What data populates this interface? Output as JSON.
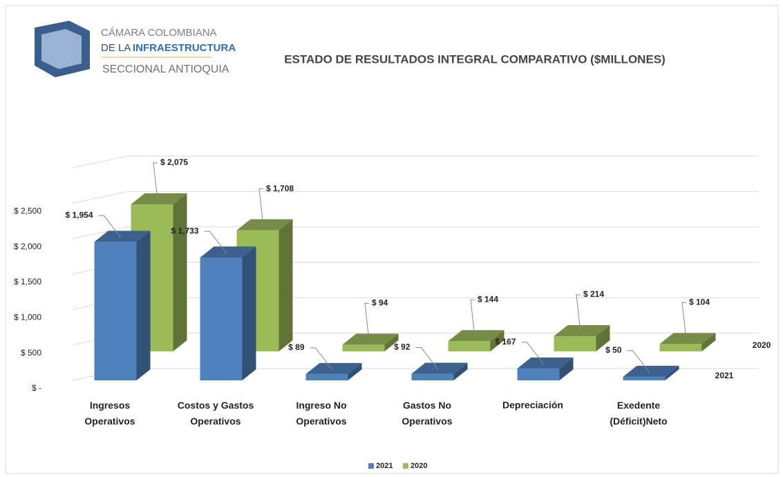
{
  "logo": {
    "line1": "CÁMARA COLOMBIANA",
    "line2a": "DE LA",
    "line2b": "INFRAESTRUCTURA",
    "line3": "SECCIONAL ANTIOQUIA"
  },
  "chart_data": {
    "type": "bar3d",
    "title": "ESTADO DE RESULTADOS  INTEGRAL  COMPARATIVO ($MILLONES)",
    "categories": [
      "Ingresos Operativos",
      "Costos y Gastos Operativos",
      "Ingreso No Operativos",
      "Gastos No Operativos",
      "Depreciación",
      "Exedente (Déficit)Neto"
    ],
    "series": [
      {
        "name": "2021",
        "color": "#4f81bd",
        "values": [
          1954,
          1733,
          89,
          92,
          167,
          50
        ],
        "value_labels": [
          "$ 1,954",
          "$ 1,733",
          "$ 89",
          "$ 92",
          "$ 167",
          "$ 50"
        ]
      },
      {
        "name": "2020",
        "color": "#9bbb59",
        "values": [
          2075,
          1708,
          94,
          144,
          214,
          104
        ],
        "value_labels": [
          "$ 2,075",
          "$ 1,708",
          "$ 94",
          "$ 144",
          "$ 214",
          "$ 104"
        ]
      }
    ],
    "ylim": [
      0,
      3000
    ],
    "yticks": [
      {
        "value": 0,
        "label": "$ -"
      },
      {
        "value": 500,
        "label": "$ 500"
      },
      {
        "value": 1000,
        "label": "$ 1,000"
      },
      {
        "value": 1500,
        "label": "$ 1,500"
      },
      {
        "value": 2000,
        "label": "$ 2,000"
      },
      {
        "value": 2500,
        "label": "$ 2,500"
      }
    ],
    "grid": true,
    "legend": "bottom"
  }
}
